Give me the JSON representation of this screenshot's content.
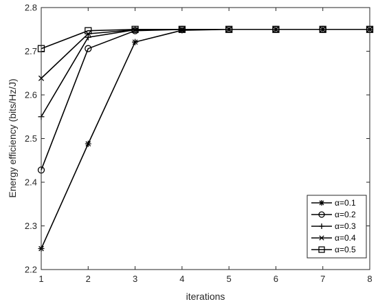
{
  "chart_data": {
    "type": "line",
    "xlabel": "iterations",
    "ylabel": "Energy efficiency (bits/Hz/J)",
    "xlim": [
      1,
      8
    ],
    "ylim": [
      2.2,
      2.8
    ],
    "x_ticks": [
      "1",
      "2",
      "3",
      "4",
      "5",
      "6",
      "7",
      "8"
    ],
    "y_ticks": [
      "2.2",
      "2.3",
      "2.4",
      "2.5",
      "2.6",
      "2.7",
      "2.8"
    ],
    "x": [
      1,
      2,
      3,
      4,
      5,
      6,
      7,
      8
    ],
    "grid": false,
    "legend_position": "bottom-right",
    "series": [
      {
        "name": "α=0.1",
        "marker": "asterisk",
        "color": "#000000",
        "values": [
          2.248,
          2.488,
          2.721,
          2.748,
          2.75,
          2.75,
          2.75,
          2.75
        ]
      },
      {
        "name": "α=0.2",
        "marker": "circle",
        "color": "#000000",
        "values": [
          2.428,
          2.706,
          2.747,
          2.75,
          2.75,
          2.75,
          2.75,
          2.75
        ]
      },
      {
        "name": "α=0.3",
        "marker": "plus",
        "color": "#000000",
        "values": [
          2.55,
          2.732,
          2.749,
          2.75,
          2.75,
          2.75,
          2.75,
          2.75
        ]
      },
      {
        "name": "α=0.4",
        "marker": "cross",
        "color": "#000000",
        "values": [
          2.638,
          2.74,
          2.749,
          2.75,
          2.75,
          2.75,
          2.75,
          2.75
        ]
      },
      {
        "name": "α=0.5",
        "marker": "square",
        "color": "#000000",
        "values": [
          2.706,
          2.747,
          2.75,
          2.75,
          2.75,
          2.75,
          2.75,
          2.75
        ]
      }
    ]
  }
}
